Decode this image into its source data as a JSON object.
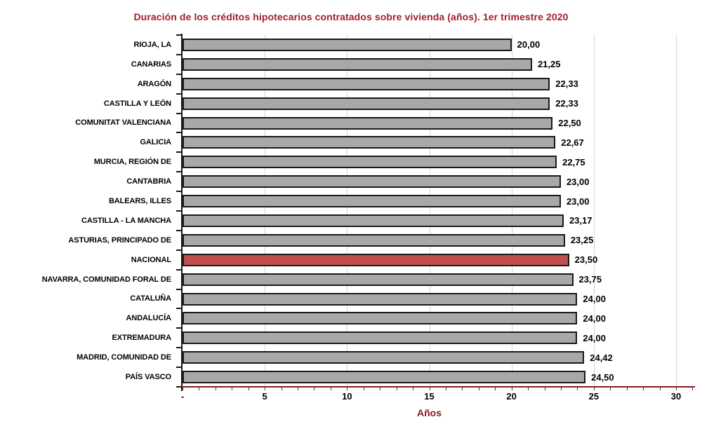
{
  "chart_data": {
    "type": "bar",
    "orientation": "horizontal",
    "title": "Duración de los créditos hipotecarios contratados sobre vivienda (años). 1er trimestre 2020",
    "xlabel": "Años",
    "ylabel": "",
    "xlim": [
      0,
      30
    ],
    "grid": "vertical gridlines at multiples of 5",
    "legend": "none",
    "categories": [
      "RIOJA, LA",
      "CANARIAS",
      "ARAGÓN",
      "CASTILLA Y LEÓN",
      "COMUNITAT VALENCIANA",
      "GALICIA",
      "MURCIA, REGIÓN DE",
      "CANTABRIA",
      "BALEARS, ILLES",
      "CASTILLA - LA MANCHA",
      "ASTURIAS, PRINCIPADO DE",
      "NACIONAL",
      "NAVARRA, COMUNIDAD FORAL DE",
      "CATALUÑA",
      "ANDALUCÍA",
      "EXTREMADURA",
      "MADRID, COMUNIDAD DE",
      "PAÍS VASCO"
    ],
    "values": [
      20.0,
      21.25,
      22.33,
      22.33,
      22.5,
      22.67,
      22.75,
      23.0,
      23.0,
      23.17,
      23.25,
      23.5,
      23.75,
      24.0,
      24.0,
      24.0,
      24.42,
      24.5
    ],
    "value_labels": [
      "20,00",
      "21,25",
      "22,33",
      "22,33",
      "22,50",
      "22,67",
      "22,75",
      "23,00",
      "23,00",
      "23,17",
      "23,25",
      "23,50",
      "23,75",
      "24,00",
      "24,00",
      "24,00",
      "24,42",
      "24,50"
    ],
    "xticks": [
      {
        "value": 0,
        "label": "-"
      },
      {
        "value": 5,
        "label": "5"
      },
      {
        "value": 10,
        "label": "10"
      },
      {
        "value": 15,
        "label": "15"
      },
      {
        "value": 20,
        "label": "20"
      },
      {
        "value": 25,
        "label": "25"
      },
      {
        "value": 30,
        "label": "30"
      }
    ],
    "highlight": {
      "category": "NACIONAL",
      "index": 11,
      "color": "#C0504D"
    },
    "colors": {
      "bar_fill": "#A8A8A8",
      "bar_border": "#1a1a1a",
      "highlight_fill": "#C0504D",
      "title_color": "#A21E2C",
      "axis_red": "#8B1A22",
      "y_axis_black": "#1a1a1a",
      "gridline_color": "#DCD0D2",
      "text_color": "#000000"
    }
  }
}
